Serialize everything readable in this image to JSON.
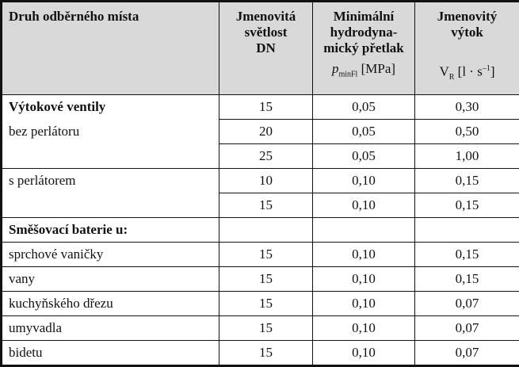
{
  "header": {
    "col1": "Druh odběrného místa",
    "col2": [
      "Jmenovitá",
      "světlost",
      "DN"
    ],
    "col3": {
      "lines": [
        "Minimální",
        "hydrodyna-",
        "mický přetlak"
      ],
      "symbol": "p",
      "sub": "minFl",
      "unit": "[MPa]"
    },
    "col4": {
      "lines": [
        "Jmenovitý",
        "výtok"
      ],
      "symbol": "V",
      "sub": "R",
      "unit": "[l · s",
      "sup": "–1",
      "close": "]"
    }
  },
  "rows": [
    [
      "Výtokové ventily",
      "15",
      "0,05",
      "0,30"
    ],
    [
      "bez perlátoru",
      "20",
      "0,05",
      "0,50"
    ],
    [
      null,
      "25",
      "0,05",
      "1,00"
    ],
    [
      "s perlátorem",
      "10",
      "0,10",
      "0,15"
    ],
    [
      null,
      "15",
      "0,10",
      "0,15"
    ],
    [
      "Směšovací baterie u:",
      null,
      null,
      null
    ],
    [
      "sprchové vaničky",
      "15",
      "0,10",
      "0,15"
    ],
    [
      "vany",
      "15",
      "0,10",
      "0,15"
    ],
    [
      "kuchyňského dřezu",
      "15",
      "0,10",
      "0,07"
    ],
    [
      "umyvadla",
      "15",
      "0,10",
      "0,07"
    ],
    [
      "bidetu",
      "15",
      "0,10",
      "0,07"
    ]
  ]
}
